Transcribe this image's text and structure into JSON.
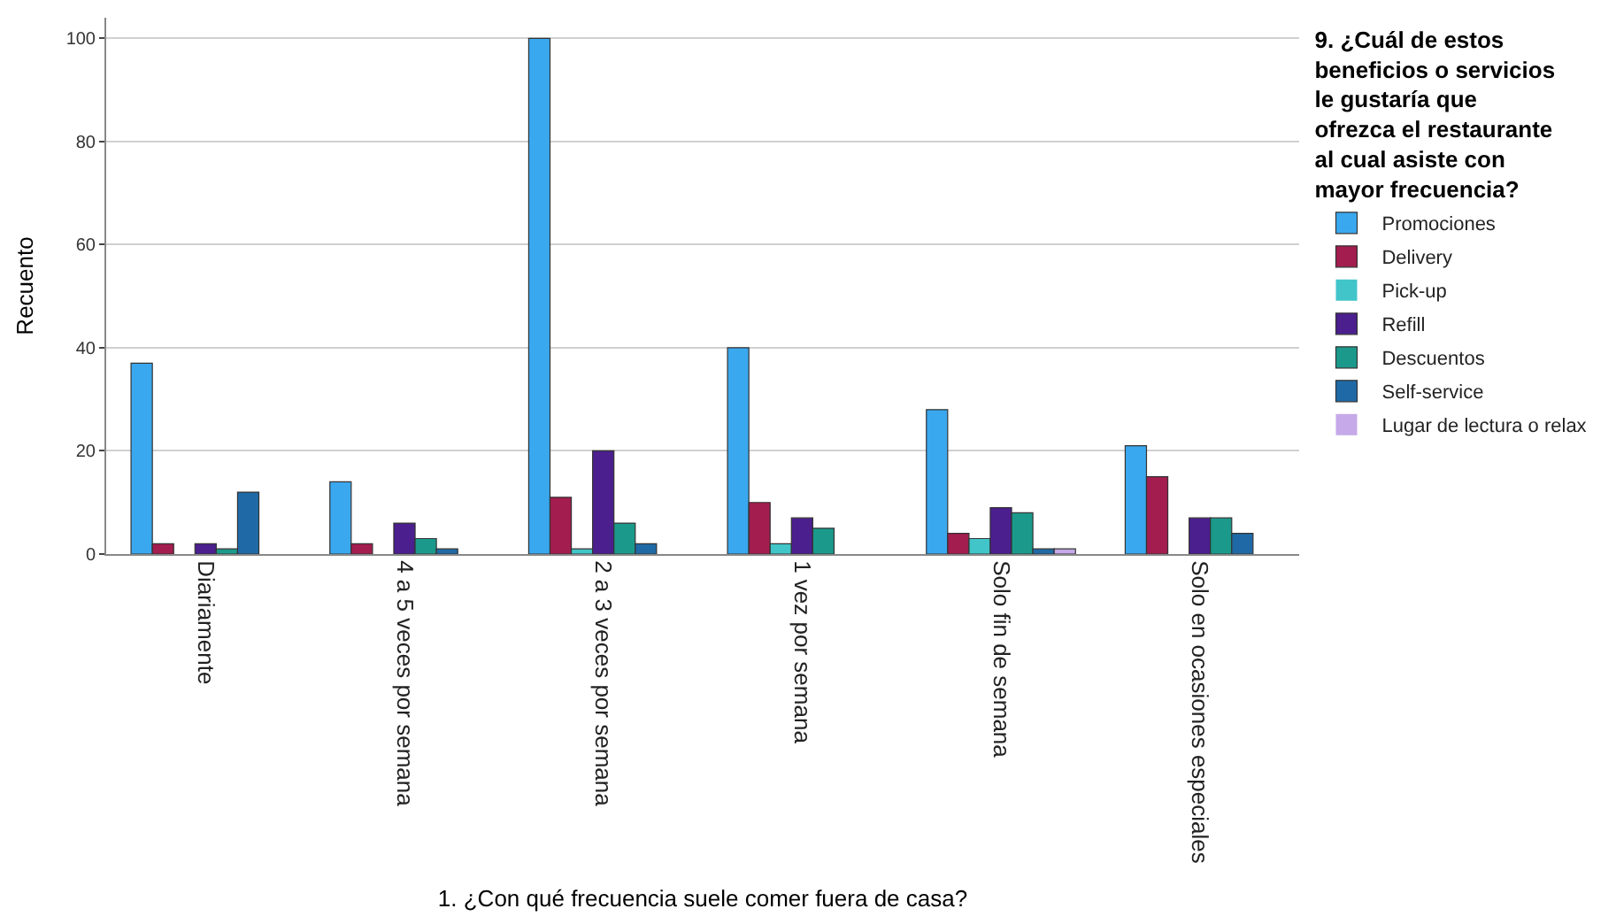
{
  "chart_data": {
    "type": "bar",
    "xlabel": "1. ¿Con qué frecuencia suele comer fuera de casa?",
    "ylabel": "Recuento",
    "legend_title": "9. ¿Cuál de estos beneficios o servicios le gustaría que ofrezca el restaurante al cual asiste con mayor frecuencia?",
    "categories": [
      "Diariamente",
      "4 a 5 veces por semana",
      "2 a 3 veces por semana",
      "1 vez por semana",
      "Solo fin de semana",
      "Solo en ocasiones especiales"
    ],
    "series": [
      {
        "name": "Promociones",
        "color": "#3aa8ee",
        "values": [
          37,
          14,
          100,
          40,
          28,
          21
        ]
      },
      {
        "name": "Delivery",
        "color": "#a31d4e",
        "values": [
          2,
          2,
          11,
          10,
          4,
          15
        ]
      },
      {
        "name": "Pick-up",
        "color": "#41c5c9",
        "values": [
          0,
          0,
          1,
          2,
          3,
          0
        ]
      },
      {
        "name": "Refill",
        "color": "#4b1f8e",
        "values": [
          2,
          6,
          20,
          7,
          9,
          7
        ]
      },
      {
        "name": "Descuentos",
        "color": "#1b9a8c",
        "values": [
          1,
          3,
          6,
          5,
          8,
          7
        ]
      },
      {
        "name": "Self-service",
        "color": "#1f6aa6",
        "values": [
          12,
          1,
          2,
          0,
          1,
          4
        ]
      },
      {
        "name": "Lugar de lectura o relax",
        "color": "#c5a9e8",
        "values": [
          0,
          0,
          0,
          0,
          1,
          0
        ]
      }
    ],
    "ylim": [
      0,
      104
    ],
    "yticks": [
      0,
      20,
      40,
      60,
      80,
      100
    ],
    "grid": "y",
    "legend": "right"
  }
}
